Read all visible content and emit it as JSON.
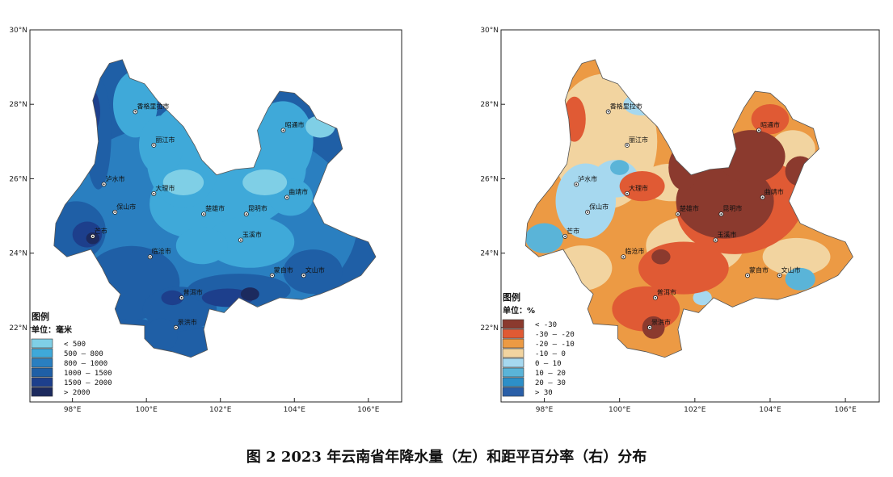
{
  "caption": "图 2  2023 年云南省年降水量（左）和距平百分率（右）分布",
  "axes": {
    "lat_labels": [
      "30°N",
      "28°N",
      "26°N",
      "24°N",
      "22°N"
    ],
    "lon_labels": [
      "98°E",
      "100°E",
      "102°E",
      "104°E",
      "106°E"
    ]
  },
  "cities": [
    {
      "name": "香格里拉市",
      "lon": 99.7,
      "lat": 27.8
    },
    {
      "name": "丽江市",
      "lon": 100.2,
      "lat": 26.9
    },
    {
      "name": "昭通市",
      "lon": 103.7,
      "lat": 27.3
    },
    {
      "name": "泸水市",
      "lon": 98.85,
      "lat": 25.85
    },
    {
      "name": "大理市",
      "lon": 100.2,
      "lat": 25.6
    },
    {
      "name": "曲靖市",
      "lon": 103.8,
      "lat": 25.5
    },
    {
      "name": "保山市",
      "lon": 99.15,
      "lat": 25.1
    },
    {
      "name": "楚雄市",
      "lon": 101.55,
      "lat": 25.05
    },
    {
      "name": "昆明市",
      "lon": 102.7,
      "lat": 25.05
    },
    {
      "name": "芒市",
      "lon": 98.55,
      "lat": 24.45
    },
    {
      "name": "玉溪市",
      "lon": 102.55,
      "lat": 24.35
    },
    {
      "name": "临沧市",
      "lon": 100.1,
      "lat": 23.9
    },
    {
      "name": "蒙自市",
      "lon": 103.4,
      "lat": 23.4
    },
    {
      "name": "文山市",
      "lon": 104.25,
      "lat": 23.4
    },
    {
      "name": "普洱市",
      "lon": 100.95,
      "lat": 22.8
    },
    {
      "name": "景洪市",
      "lon": 100.8,
      "lat": 22.0
    }
  ],
  "left_map": {
    "legend_title": "图例",
    "legend_unit": "单位：毫米",
    "legend": [
      {
        "label": "<  500",
        "color": "#7fcfe6"
      },
      {
        "label": "500  –  800",
        "color": "#3fa9d9"
      },
      {
        "label": "800  –  1000",
        "color": "#2a7fc0"
      },
      {
        "label": "1000  –  1500",
        "color": "#1f5fa6"
      },
      {
        "label": "1500  –  2000",
        "color": "#1d3f8c"
      },
      {
        "label": ">  2000",
        "color": "#1c2a5e"
      }
    ]
  },
  "right_map": {
    "legend_title": "图例",
    "legend_unit": "单位：%",
    "legend": [
      {
        "label": "<  -30",
        "color": "#8b3a2e"
      },
      {
        "label": "-30  –  -20",
        "color": "#e05a34"
      },
      {
        "label": "-20  –  -10",
        "color": "#ec9a44"
      },
      {
        "label": "-10  –  0",
        "color": "#f2d4a0"
      },
      {
        "label": "0  –  10",
        "color": "#a6d8ef"
      },
      {
        "label": "10  –  20",
        "color": "#5ab4d8"
      },
      {
        "label": "20  –  30",
        "color": "#2d8fc8"
      },
      {
        "label": ">  30",
        "color": "#2a5fa8"
      }
    ]
  }
}
